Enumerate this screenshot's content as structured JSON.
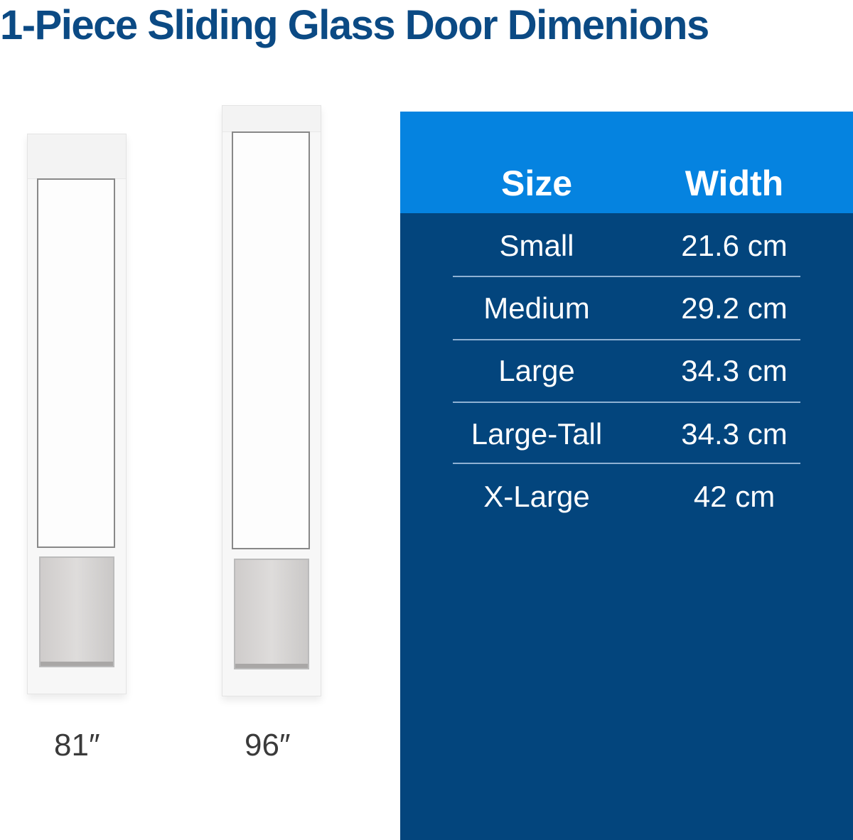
{
  "title": "1-Piece Sliding Glass Door Dimenions",
  "doors": [
    {
      "label": "81″"
    },
    {
      "label": "96″"
    }
  ],
  "table": {
    "headers": [
      "Size",
      "Width"
    ],
    "rows": [
      [
        "Small",
        "21.6 cm"
      ],
      [
        "Medium",
        "29.2 cm"
      ],
      [
        "Large",
        "34.3 cm"
      ],
      [
        "Large-Tall",
        "34.3 cm"
      ],
      [
        "X-Large",
        "42 cm"
      ]
    ]
  },
  "colors": {
    "title": "#0b4a84",
    "header_bg": "#0583e0",
    "body_bg": "#03457d"
  }
}
